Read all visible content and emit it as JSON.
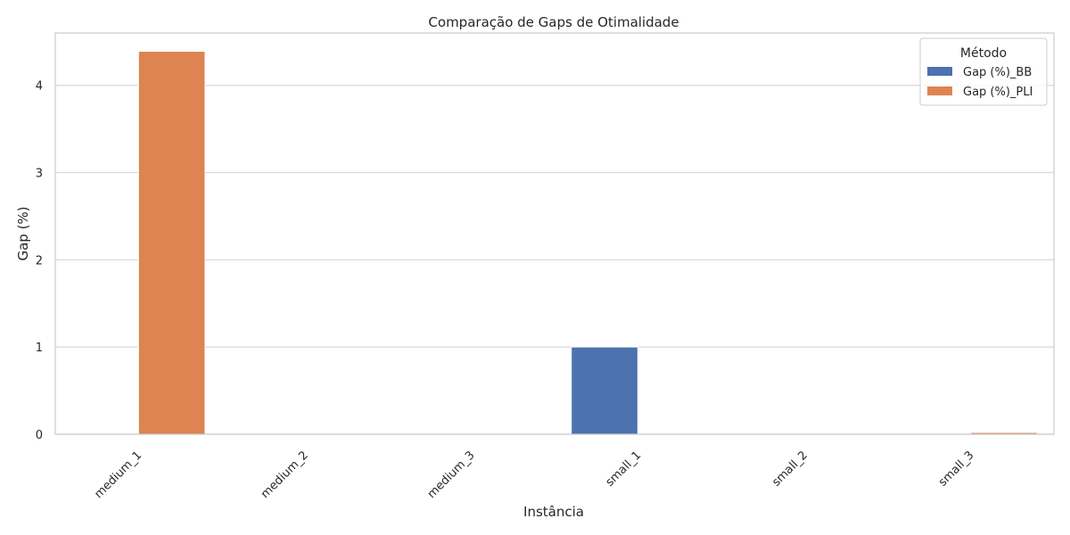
{
  "chart_data": {
    "type": "bar",
    "title": "Comparação de Gaps de Otimalidade",
    "xlabel": "Instância",
    "ylabel": "Gap (%)",
    "categories": [
      "medium_1",
      "medium_2",
      "medium_3",
      "small_1",
      "small_2",
      "small_3"
    ],
    "series": [
      {
        "name": "Gap (%)_BB",
        "color": "#4c72b0",
        "values": [
          0,
          0,
          0,
          1.0,
          0,
          0
        ]
      },
      {
        "name": "Gap (%)_PLI",
        "color": "#dd8452",
        "values": [
          4.39,
          0,
          0,
          0,
          0,
          0.02
        ]
      }
    ],
    "ylim": [
      0,
      4.6
    ],
    "yticks": [
      0,
      1,
      2,
      3,
      4
    ],
    "grid": "horizontal",
    "legend": {
      "title": "Método",
      "placement": "top-right"
    }
  }
}
